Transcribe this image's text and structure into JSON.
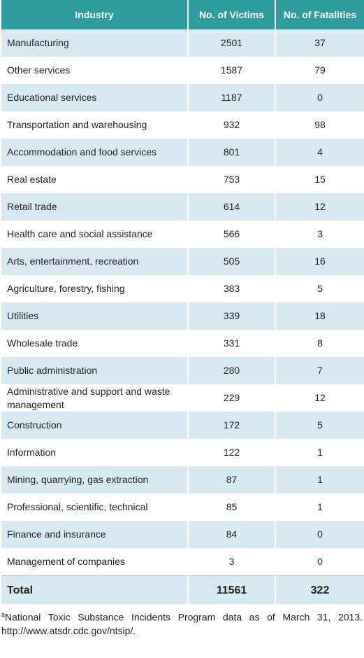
{
  "table": {
    "header": [
      "Industry",
      "No. of Victims",
      "No. of Fatalities"
    ],
    "rows": [
      [
        "Manufacturing",
        2501,
        37
      ],
      [
        "Other services",
        1587,
        79
      ],
      [
        "Educational services",
        1187,
        0
      ],
      [
        "Transportation and warehousing",
        932,
        98
      ],
      [
        "Accommodation and food services",
        801,
        4
      ],
      [
        "Real estate",
        753,
        15
      ],
      [
        "Retail trade",
        614,
        12
      ],
      [
        "Health care and social assistance",
        566,
        3
      ],
      [
        "Arts, entertainment, recreation",
        505,
        16
      ],
      [
        "Agriculture, forestry, fishing",
        383,
        5
      ],
      [
        "Utilities",
        339,
        18
      ],
      [
        "Wholesale trade",
        331,
        8
      ],
      [
        "Public administration",
        280,
        7
      ],
      [
        "Administrative and support and waste management",
        229,
        12
      ],
      [
        "Construction",
        172,
        5
      ],
      [
        "Information",
        122,
        1
      ],
      [
        "Mining, quarrying, gas extraction",
        87,
        1
      ],
      [
        "Professional, scientific, technical",
        85,
        1
      ],
      [
        "Finance and insurance",
        84,
        0
      ],
      [
        "Management of companies",
        3,
        0
      ]
    ],
    "total": [
      "Total",
      11561,
      322
    ]
  },
  "footnote": {
    "marker": "a",
    "text": "National Toxic Substance Incidents Program data as of March 31, 2013. http://www.atsdr.cdc.gov/ntsip/."
  }
}
